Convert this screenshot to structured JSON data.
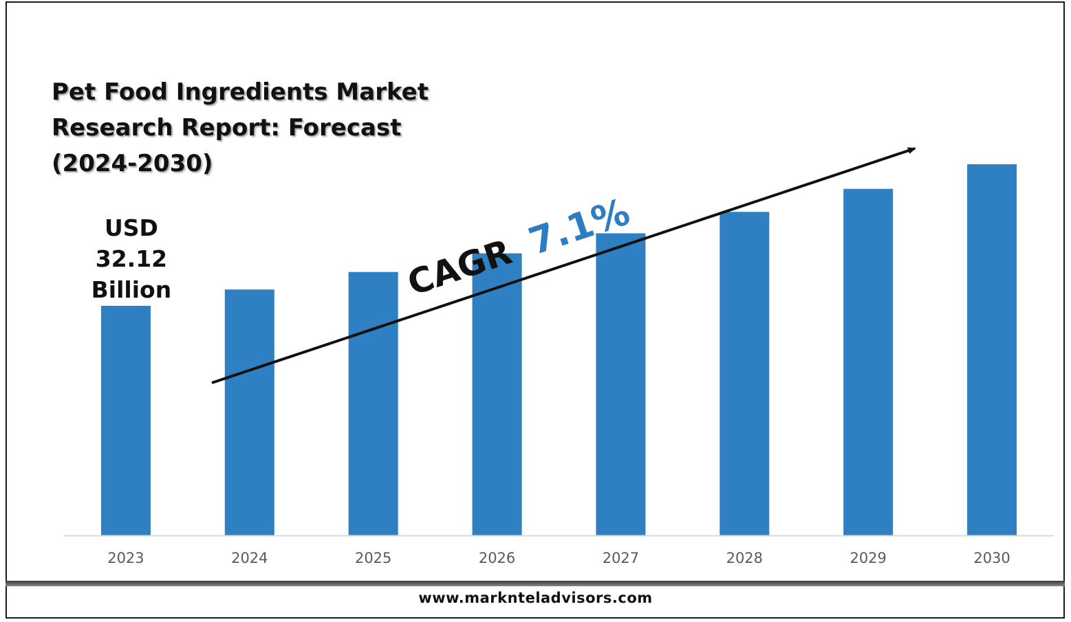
{
  "title": "Pet Food Ingredients Market Research Report: Forecast (2024-2030)",
  "footer": {
    "url": "www.marknteladvisors.com"
  },
  "colors": {
    "bar": "#2e80c2",
    "cagr_value": "#2e7dc3",
    "text": "#111111",
    "axis_text": "#595959",
    "baseline": "#d9d9d9"
  },
  "chart_data": {
    "type": "bar",
    "categories": [
      "2023",
      "2024",
      "2025",
      "2026",
      "2027",
      "2028",
      "2029",
      "2030"
    ],
    "values": [
      32.12,
      34.4,
      36.85,
      39.46,
      42.26,
      45.26,
      48.48,
      51.92
    ],
    "title": "Pet Food Ingredients Market Research Report: Forecast (2024-2030)",
    "xlabel": "",
    "ylabel": "",
    "grid": false,
    "legend": "none",
    "data_label": {
      "category": "2023",
      "lines": [
        "USD",
        "32.12",
        "Billion"
      ]
    },
    "annotation": {
      "prefix": "CAGR",
      "value": "7.1%",
      "arrow": "trend arrow rising from 2024 toward 2030"
    }
  }
}
